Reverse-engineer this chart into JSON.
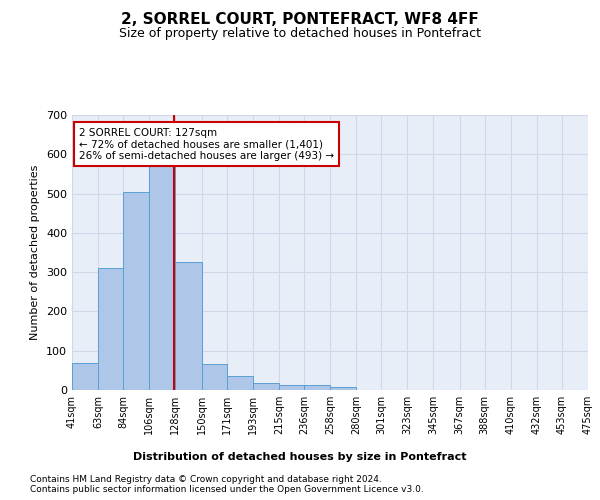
{
  "title": "2, SORREL COURT, PONTEFRACT, WF8 4FF",
  "subtitle": "Size of property relative to detached houses in Pontefract",
  "xlabel": "Distribution of detached houses by size in Pontefract",
  "ylabel": "Number of detached properties",
  "footnote1": "Contains HM Land Registry data © Crown copyright and database right 2024.",
  "footnote2": "Contains public sector information licensed under the Open Government Licence v3.0.",
  "bin_labels": [
    "41sqm",
    "63sqm",
    "84sqm",
    "106sqm",
    "128sqm",
    "150sqm",
    "171sqm",
    "193sqm",
    "215sqm",
    "236sqm",
    "258sqm",
    "280sqm",
    "301sqm",
    "323sqm",
    "345sqm",
    "367sqm",
    "388sqm",
    "410sqm",
    "432sqm",
    "453sqm",
    "475sqm"
  ],
  "bin_edges": [
    41,
    63,
    84,
    106,
    128,
    150,
    171,
    193,
    215,
    236,
    258,
    280,
    301,
    323,
    345,
    367,
    388,
    410,
    432,
    453,
    475
  ],
  "bar_heights": [
    70,
    310,
    505,
    575,
    325,
    65,
    35,
    18,
    12,
    12,
    8,
    0,
    0,
    0,
    0,
    0,
    0,
    0,
    0,
    0
  ],
  "bar_color": "#aec6e8",
  "bar_edge_color": "#5a9fd4",
  "subject_sqm": 127,
  "subject_label": "2 SORREL COURT: 127sqm",
  "annotation_line1": "← 72% of detached houses are smaller (1,401)",
  "annotation_line2": "26% of semi-detached houses are larger (493) →",
  "red_line_color": "#cc0000",
  "annotation_box_edge": "#cc0000",
  "annotation_box_face": "#ffffff",
  "grid_color": "#d0d8e8",
  "bg_color": "#e8eef8",
  "ylim": [
    0,
    700
  ],
  "yticks": [
    0,
    100,
    200,
    300,
    400,
    500,
    600,
    700
  ]
}
